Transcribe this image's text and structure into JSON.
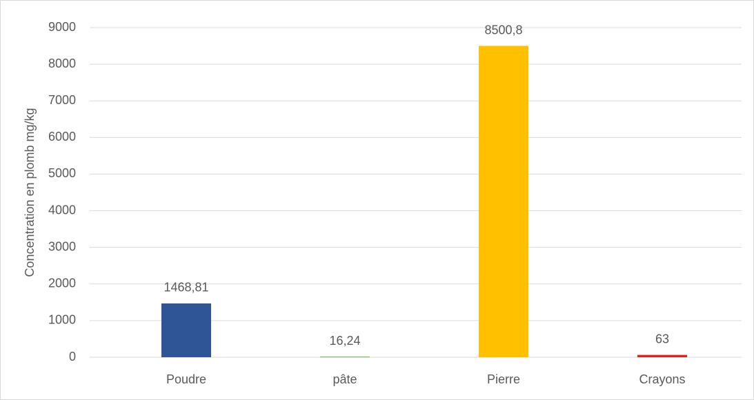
{
  "chart_data": {
    "type": "bar",
    "y_label": "Concentration en plomb mg/kg",
    "categories": [
      "Poudre",
      "pâte",
      "Pierre",
      "Crayons"
    ],
    "values": [
      1468.81,
      16.24,
      8500.8,
      63
    ],
    "value_labels": [
      "1468,81",
      "16,24",
      "8500,8",
      "63"
    ],
    "colors": [
      "#2f5597",
      "#70ad47",
      "#ffc000",
      "#e0201c"
    ],
    "ylim": [
      0,
      9000
    ],
    "yticks": [
      0,
      1000,
      2000,
      3000,
      4000,
      5000,
      6000,
      7000,
      8000,
      9000
    ],
    "grid": true
  }
}
